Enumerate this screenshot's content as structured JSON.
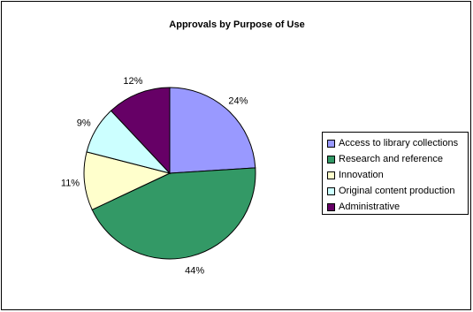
{
  "chart_data": {
    "type": "pie",
    "title": "Approvals by Purpose of Use",
    "categories": [
      "Access to library collections",
      "Research and reference",
      "Innovation",
      "Original content production",
      "Administrative"
    ],
    "values": [
      24,
      44,
      11,
      9,
      12
    ],
    "labels": [
      "24%",
      "44%",
      "11%",
      "9%",
      "12%"
    ],
    "colors": [
      "#9999FF",
      "#339966",
      "#FFFFCC",
      "#CCFFFF",
      "#660066"
    ],
    "legend_position": "right"
  }
}
